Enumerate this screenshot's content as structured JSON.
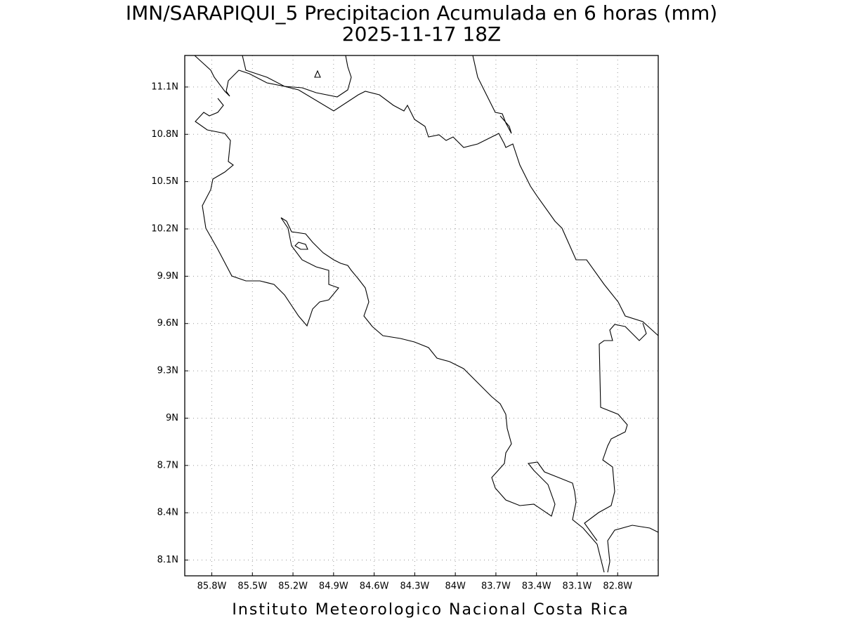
{
  "map": {
    "title": "IMN/SARAPIQUI_5 Precipitacion Acumulada en 6 horas (mm)",
    "subtitle": "2025-11-17 18Z",
    "footer": "Instituto Meteorologico Nacional Costa Rica",
    "xlim": [
      -86.0,
      -82.5
    ],
    "ylim": [
      8.0,
      11.3
    ],
    "xticks": [
      {
        "value": -85.8,
        "label": "85.8W"
      },
      {
        "value": -85.5,
        "label": "85.5W"
      },
      {
        "value": -85.2,
        "label": "85.2W"
      },
      {
        "value": -84.9,
        "label": "84.9W"
      },
      {
        "value": -84.6,
        "label": "84.6W"
      },
      {
        "value": -84.3,
        "label": "84.3W"
      },
      {
        "value": -84.0,
        "label": "84W"
      },
      {
        "value": -83.7,
        "label": "83.7W"
      },
      {
        "value": -83.4,
        "label": "83.4W"
      },
      {
        "value": -83.1,
        "label": "83.1W"
      },
      {
        "value": -82.8,
        "label": "82.8W"
      }
    ],
    "yticks": [
      {
        "value": 8.1,
        "label": "8.1N"
      },
      {
        "value": 8.4,
        "label": "8.4N"
      },
      {
        "value": 8.7,
        "label": "8.7N"
      },
      {
        "value": 9.0,
        "label": "9N"
      },
      {
        "value": 9.3,
        "label": "9.3N"
      },
      {
        "value": 9.6,
        "label": "9.6N"
      },
      {
        "value": 9.9,
        "label": "9.9N"
      },
      {
        "value": 10.2,
        "label": "10.2N"
      },
      {
        "value": 10.5,
        "label": "10.5N"
      },
      {
        "value": 10.8,
        "label": "10.8N"
      },
      {
        "value": 11.1,
        "label": "11.1N"
      }
    ],
    "grid": true
  }
}
